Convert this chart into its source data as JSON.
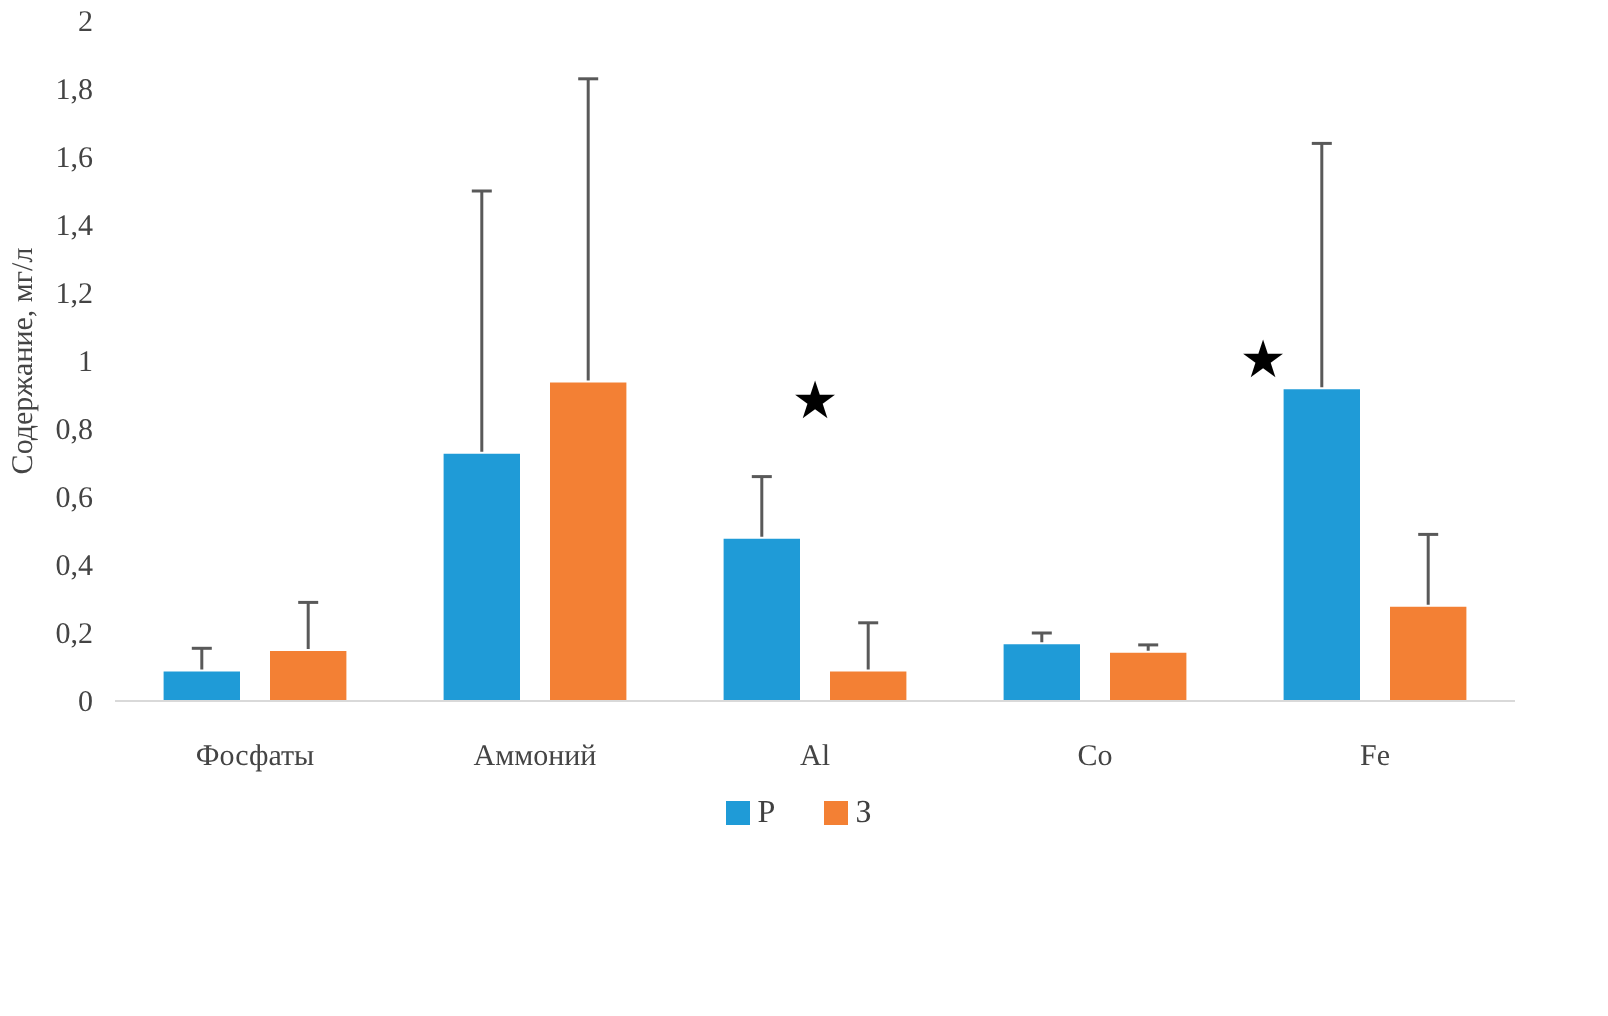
{
  "chart_data": {
    "type": "bar",
    "ylabel": "Содержание, мг/л",
    "categories": [
      "Фосфаты",
      "Аммоний",
      "Al",
      "Co",
      "Fe"
    ],
    "series": [
      {
        "name": "Р",
        "color": "#1f9bd7",
        "values": [
          0.09,
          0.73,
          0.48,
          0.17,
          0.92
        ],
        "errors": [
          [
            0.09,
            0.155
          ],
          [
            0.73,
            1.5
          ],
          [
            0.48,
            0.66
          ],
          [
            0.17,
            0.2
          ],
          [
            0.92,
            1.64
          ]
        ]
      },
      {
        "name": "З",
        "color": "#f38034",
        "values": [
          0.15,
          0.94,
          0.09,
          0.145,
          0.28
        ],
        "errors": [
          [
            0.15,
            0.29
          ],
          [
            0.94,
            1.83
          ],
          [
            0.09,
            0.23
          ],
          [
            0.145,
            0.165
          ],
          [
            0.28,
            0.49
          ]
        ]
      }
    ],
    "ylim": [
      0,
      2
    ],
    "yticks": [
      {
        "value": 0,
        "label": "0"
      },
      {
        "value": 0.2,
        "label": "0,2"
      },
      {
        "value": 0.4,
        "label": "0,4"
      },
      {
        "value": 0.6,
        "label": "0,6"
      },
      {
        "value": 0.8,
        "label": "0,8"
      },
      {
        "value": 1,
        "label": "1"
      },
      {
        "value": 1.2,
        "label": "1,2"
      },
      {
        "value": 1.4,
        "label": "1,4"
      },
      {
        "value": 1.6,
        "label": "1,6"
      },
      {
        "value": 1.8,
        "label": "1,8"
      },
      {
        "value": 2,
        "label": "2"
      }
    ],
    "grid": false,
    "legend": "bottom",
    "annotations": [
      "★",
      "★"
    ]
  }
}
